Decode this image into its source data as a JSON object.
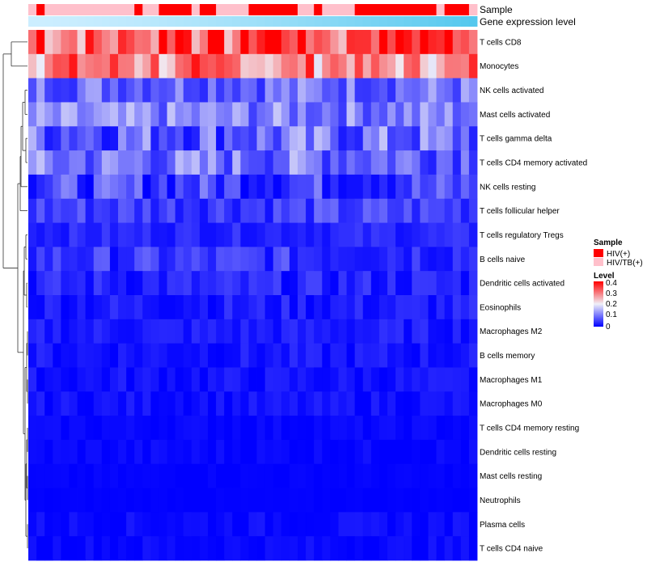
{
  "chart_data": {
    "type": "heatmap",
    "title": "",
    "annotation_labels": [
      "Sample",
      "Gene expression level"
    ],
    "sample_groups": [
      "HIV(+)",
      "HIV/TB(+)"
    ],
    "sample_annotation": [
      1,
      0,
      1,
      1,
      1,
      1,
      1,
      1,
      1,
      1,
      1,
      1,
      1,
      0,
      1,
      1,
      0,
      0,
      0,
      0,
      1,
      0,
      0,
      1,
      1,
      1,
      1,
      0,
      0,
      0,
      0,
      0,
      0,
      1,
      1,
      0,
      1,
      1,
      1,
      1,
      0,
      0,
      0,
      0,
      0,
      0,
      0,
      0,
      0,
      0,
      1,
      0,
      0,
      0,
      1
    ],
    "rows": [
      "T cells CD8",
      "Monocytes",
      "NK cells activated",
      "Mast cells activated",
      "T cells gamma delta",
      "T cells CD4 memory activated",
      "NK cells resting",
      "T cells follicular helper",
      "T cells regulatory  Tregs",
      "B cells naive",
      "Dendritic cells activated",
      "Eosinophils",
      "Macrophages M2",
      "B cells memory",
      "Macrophages M1",
      "Macrophages M0",
      "T cells CD4 memory resting",
      "Dendritic cells resting",
      "Mast cells resting",
      "Neutrophils",
      "Plasma cells",
      "T cells CD4 naive"
    ],
    "row_base_levels": [
      0.3,
      0.26,
      0.09,
      0.1,
      0.08,
      0.09,
      0.05,
      0.05,
      0.03,
      0.04,
      0.025,
      0.02,
      0.02,
      0.015,
      0.012,
      0.012,
      0.005,
      0.005,
      0.002,
      0.001,
      0.008,
      0.006
    ],
    "row_spread": [
      0.1,
      0.08,
      0.06,
      0.06,
      0.08,
      0.07,
      0.06,
      0.04,
      0.02,
      0.04,
      0.03,
      0.025,
      0.02,
      0.02,
      0.018,
      0.015,
      0.008,
      0.01,
      0.004,
      0.002,
      0.012,
      0.012
    ],
    "ncols": 55,
    "legend": {
      "sample_title": "Sample",
      "sample_entries": [
        "HIV(+)",
        "HIV/TB(+)"
      ],
      "level_title": "Level",
      "level_ticks": [
        "0.4",
        "0.3",
        "0.2",
        "0.1",
        "0"
      ],
      "range": [
        0,
        0.4
      ]
    },
    "colors": {
      "low": "#0000ff",
      "mid": "#f0f0f8",
      "high": "#ff0000",
      "hiv": "#ff0000",
      "hivtb": "#ffc0cb",
      "expression_light": "#cceeff",
      "expression_dark": "#55c8ee"
    }
  }
}
